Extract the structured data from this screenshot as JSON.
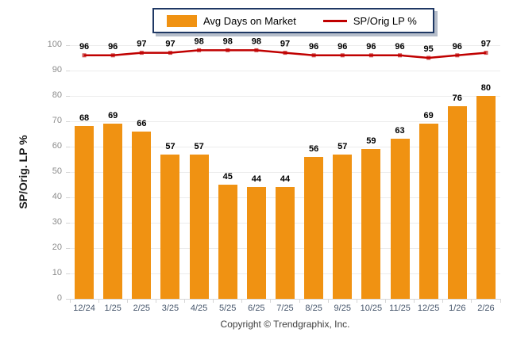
{
  "legend": {
    "bar_label": "Avg Days on Market",
    "line_label": "SP/Orig LP %"
  },
  "y_axis_title": "SP/Orig. LP %",
  "footer": "Copyright © Trendgraphix, Inc.",
  "colors": {
    "bar": "#F09212",
    "line": "#C00000",
    "marker": "#D05050",
    "legend_border": "#1F3864",
    "grid": "#ECECEC",
    "axis": "#D6D6D6",
    "y_tick_label": "#8C8C8C",
    "x_tick_label": "#44546A",
    "data_label": "#000000"
  },
  "chart_data": {
    "type": "bar",
    "categories": [
      "12/24",
      "1/25",
      "2/25",
      "3/25",
      "4/25",
      "5/25",
      "6/25",
      "7/25",
      "8/25",
      "9/25",
      "10/25",
      "11/25",
      "12/25",
      "1/26",
      "2/26"
    ],
    "series": [
      {
        "name": "Avg Days on Market",
        "type": "bar",
        "values": [
          68,
          69,
          66,
          57,
          57,
          45,
          44,
          44,
          56,
          57,
          59,
          63,
          69,
          76,
          80
        ]
      },
      {
        "name": "SP/Orig LP %",
        "type": "line",
        "values": [
          96,
          96,
          97,
          97,
          98,
          98,
          98,
          97,
          96,
          96,
          96,
          96,
          95,
          96,
          97
        ]
      }
    ],
    "title": "",
    "xlabel": "",
    "ylabel": "SP/Orig. LP %",
    "ylim": [
      0,
      100
    ],
    "yticks": [
      0,
      10,
      20,
      30,
      40,
      50,
      60,
      70,
      80,
      90,
      100
    ],
    "grid": true,
    "legend_position": "top-center",
    "data_labels": true
  }
}
